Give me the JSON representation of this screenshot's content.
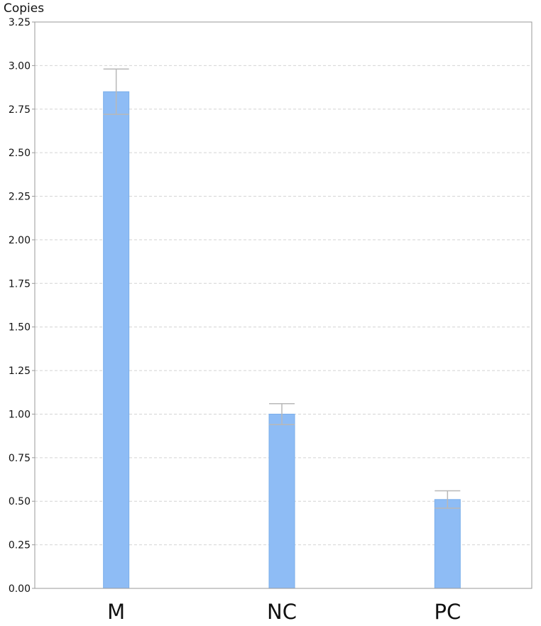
{
  "chart_data": {
    "type": "bar",
    "ylabel": "Copies",
    "xlabel": "",
    "categories": [
      "M",
      "NC",
      "PC"
    ],
    "values": [
      2.85,
      1.0,
      0.51
    ],
    "error_upper": [
      2.98,
      1.06,
      0.56
    ],
    "error_lower": [
      2.72,
      0.94,
      0.46
    ],
    "ylim": [
      0,
      3.25
    ],
    "yticks": [
      "0.00",
      "0.25",
      "0.50",
      "0.75",
      "1.00",
      "1.25",
      "1.50",
      "1.75",
      "2.00",
      "2.25",
      "2.50",
      "2.75",
      "3.00",
      "3.25"
    ],
    "grid": true,
    "legend": "none",
    "colors": {
      "bar_fill": "#8ebcf5",
      "bar_stroke": "#7aaeea",
      "error_bar": "#b8b8b8",
      "grid": "#d4d4d4",
      "axis": "#999999"
    }
  }
}
